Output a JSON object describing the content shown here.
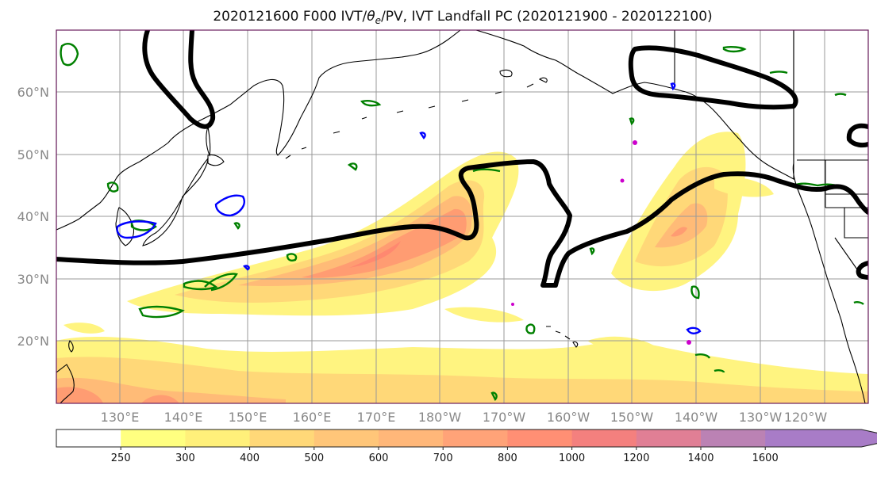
{
  "title_main": "2020121600 F000 IVT/",
  "title_theta": "θ",
  "title_theta_sub": "e",
  "title_rest": "/PV, IVT Landfall PC (2020121900 - 2020122100)",
  "lat_labels": [
    "60°N",
    "50°N",
    "40°N",
    "30°N",
    "20°N"
  ],
  "lon_labels": [
    "130°E",
    "140°E",
    "150°E",
    "160°E",
    "170°E",
    "180°W",
    "170°W",
    "160°W",
    "150°W",
    "140°W",
    "130°W",
    "120°W"
  ],
  "colorbar": {
    "levels": [
      "250",
      "300",
      "400",
      "500",
      "600",
      "700",
      "800",
      "1000",
      "1200",
      "1400",
      "1600"
    ],
    "colors": [
      "#ffff80",
      "#fff07a",
      "#ffd878",
      "#ffc679",
      "#ffb779",
      "#ffa378",
      "#ff8f74",
      "#f4807e",
      "#e07f95",
      "#bb82b4",
      "#a87cc7",
      "#a87cc7"
    ]
  },
  "colors": {
    "pv_contour": "#000000",
    "theta_e_positive": "#008000",
    "theta_e_negative": "#0000ff",
    "magenta_marker": "#cc00cc",
    "frame": "#6b1f5f"
  }
}
